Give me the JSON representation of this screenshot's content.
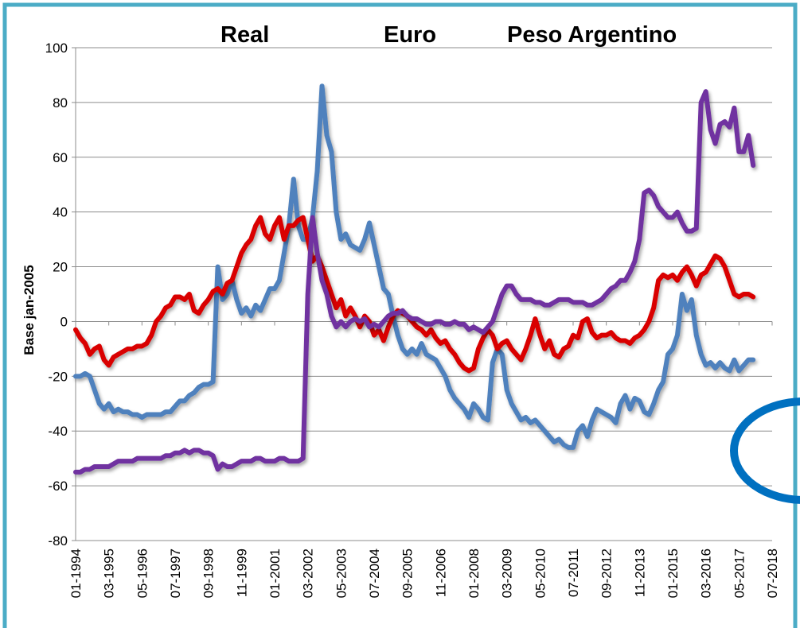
{
  "chart_data": {
    "type": "line",
    "y_label": "Base jan-2005",
    "categories": [
      "01-1994",
      null,
      null,
      null,
      null,
      null,
      null,
      "03-1995",
      null,
      null,
      null,
      null,
      null,
      null,
      "05-1996",
      null,
      null,
      null,
      null,
      null,
      null,
      "07-1997",
      null,
      null,
      null,
      null,
      null,
      null,
      "09-1998",
      null,
      null,
      null,
      null,
      null,
      null,
      "11-1999",
      null,
      null,
      null,
      null,
      null,
      null,
      "01-2001",
      null,
      null,
      null,
      null,
      null,
      null,
      "03-2002",
      null,
      null,
      null,
      null,
      null,
      null,
      "05-2003",
      null,
      null,
      null,
      null,
      null,
      null,
      "07-2004",
      null,
      null,
      null,
      null,
      null,
      null,
      "09-2005",
      null,
      null,
      null,
      null,
      null,
      null,
      "11-2006",
      null,
      null,
      null,
      null,
      null,
      null,
      "01-2008",
      null,
      null,
      null,
      null,
      null,
      null,
      "03-2009",
      null,
      null,
      null,
      null,
      null,
      null,
      "05-2010",
      null,
      null,
      null,
      null,
      null,
      null,
      "07-2011",
      null,
      null,
      null,
      null,
      null,
      null,
      "09-2012",
      null,
      null,
      null,
      null,
      null,
      null,
      "11-2013",
      null,
      null,
      null,
      null,
      null,
      null,
      "01-2015",
      null,
      null,
      null,
      null,
      null,
      null,
      "03-2016",
      null,
      null,
      null,
      null,
      null,
      null,
      "05-2017",
      null,
      null,
      null,
      null,
      null,
      null,
      "07-2018"
    ],
    "series": [
      {
        "name": "Real",
        "color": "#4f81bd",
        "values": [
          -20,
          -20,
          -19,
          -20,
          -25,
          -30,
          -32,
          -30,
          -33,
          -32,
          -33,
          -33,
          -34,
          -34,
          -35,
          -34,
          -34,
          -34,
          -34,
          -33,
          -33,
          -31,
          -29,
          -29,
          -27,
          -26,
          -24,
          -23,
          -23,
          -22,
          20,
          8,
          10,
          15,
          8,
          3,
          5,
          2,
          6,
          4,
          8,
          12,
          12,
          15,
          25,
          35,
          52,
          35,
          30,
          30,
          38,
          55,
          86,
          68,
          62,
          40,
          30,
          32,
          28,
          27,
          26,
          30,
          36,
          28,
          20,
          12,
          10,
          2,
          -5,
          -10,
          -12,
          -10,
          -12,
          -8,
          -12,
          -13,
          -14,
          -17,
          -20,
          -25,
          -28,
          -30,
          -32,
          -35,
          -30,
          -32,
          -35,
          -36,
          -15,
          -10,
          -12,
          -25,
          -30,
          -33,
          -36,
          -35,
          -37,
          -36,
          -38,
          -40,
          -42,
          -44,
          -43,
          -45,
          -46,
          -46,
          -40,
          -38,
          -42,
          -36,
          -32,
          -33,
          -34,
          -35,
          -37,
          -30,
          -27,
          -32,
          -28,
          -29,
          -33,
          -34,
          -30,
          -25,
          -22,
          -12,
          -10,
          -5,
          10,
          4,
          8,
          -5,
          -12,
          -16,
          -15,
          -17,
          -15,
          -17,
          -18,
          -14,
          -18,
          -16,
          -14,
          -14,
          null,
          null,
          null,
          null
        ]
      },
      {
        "name": "Euro",
        "color": "#d90000",
        "values": [
          -3,
          -6,
          -8,
          -12,
          -10,
          -9,
          -14,
          -16,
          -13,
          -12,
          -11,
          -10,
          -10,
          -9,
          -9,
          -8,
          -5,
          0,
          2,
          5,
          6,
          9,
          9,
          8,
          10,
          4,
          3,
          6,
          8,
          11,
          12,
          10,
          14,
          15,
          20,
          25,
          28,
          30,
          35,
          38,
          32,
          30,
          35,
          38,
          30,
          35,
          35,
          37,
          38,
          30,
          22,
          24,
          20,
          15,
          10,
          5,
          8,
          2,
          5,
          2,
          -2,
          2,
          0,
          -5,
          -3,
          -7,
          -2,
          2,
          4,
          3,
          2,
          0,
          -2,
          -3,
          -5,
          -3,
          -6,
          -8,
          -7,
          -10,
          -12,
          -15,
          -17,
          -18,
          -17,
          -10,
          -6,
          -3,
          -5,
          -10,
          -8,
          -7,
          -10,
          -12,
          -14,
          -10,
          -5,
          1,
          -5,
          -10,
          -7,
          -12,
          -13,
          -10,
          -9,
          -5,
          -6,
          0,
          1,
          -4,
          -6,
          -5,
          -5,
          -4,
          -6,
          -7,
          -7,
          -8,
          -6,
          -5,
          -3,
          0,
          5,
          15,
          17,
          16,
          17,
          15,
          18,
          20,
          17,
          13,
          17,
          18,
          21,
          24,
          23,
          20,
          15,
          10,
          9,
          10,
          10,
          9,
          null,
          null,
          null,
          null
        ]
      },
      {
        "name": "Peso Argentino",
        "color": "#7030a0",
        "values": [
          -55,
          -55,
          -54,
          -54,
          -53,
          -53,
          -53,
          -53,
          -52,
          -51,
          -51,
          -51,
          -51,
          -50,
          -50,
          -50,
          -50,
          -50,
          -50,
          -49,
          -49,
          -48,
          -48,
          -47,
          -48,
          -47,
          -47,
          -48,
          -48,
          -49,
          -54,
          -52,
          -53,
          -53,
          -52,
          -51,
          -51,
          -51,
          -50,
          -50,
          -51,
          -51,
          -51,
          -50,
          -50,
          -51,
          -51,
          -51,
          -50,
          10,
          38,
          25,
          15,
          10,
          2,
          -2,
          0,
          -2,
          0,
          1,
          0,
          1,
          -2,
          -1,
          -2,
          0,
          2,
          3,
          3,
          4,
          2,
          1,
          1,
          0,
          -1,
          -1,
          0,
          0,
          -1,
          -1,
          0,
          -1,
          -1,
          -3,
          -2,
          -3,
          -4,
          -2,
          0,
          5,
          10,
          13,
          13,
          10,
          8,
          8,
          8,
          7,
          7,
          6,
          6,
          7,
          8,
          8,
          8,
          7,
          7,
          7,
          6,
          6,
          7,
          8,
          10,
          12,
          13,
          15,
          15,
          18,
          22,
          30,
          47,
          48,
          46,
          42,
          40,
          38,
          38,
          40,
          36,
          33,
          33,
          34,
          80,
          84,
          70,
          65,
          72,
          73,
          71,
          78,
          62,
          62,
          68,
          57,
          null,
          null,
          null,
          null
        ]
      }
    ],
    "ylim": [
      -80,
      100
    ],
    "yticks": [
      -80,
      -60,
      -40,
      -20,
      0,
      20,
      40,
      60,
      80,
      100
    ],
    "grid": true,
    "legend": "top"
  }
}
